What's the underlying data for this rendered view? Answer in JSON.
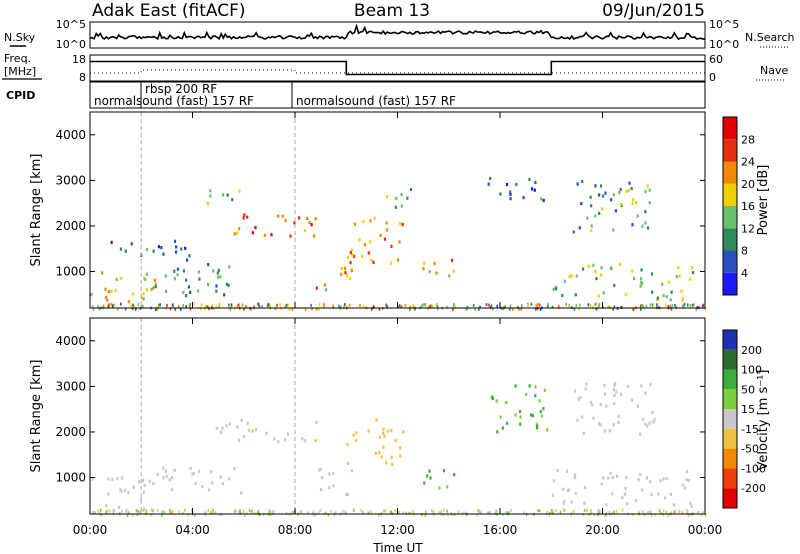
{
  "header": {
    "station": "Adak East (fitACF)",
    "beam": "Beam 13",
    "date": "09/Jun/2015"
  },
  "nsky_panel": {
    "left_label": "N.Sky",
    "right_label": "N.Search",
    "ticks_left": [
      "10^5",
      "10^0"
    ],
    "ticks_right": [
      "10^5",
      "10^0"
    ]
  },
  "freq_panel": {
    "left_label_1": "Freq.",
    "left_label_2": "[MHz]",
    "right_label": "Nave",
    "ticks_left": [
      "18",
      "8"
    ],
    "ticks_right": [
      "60",
      "0"
    ]
  },
  "cpid_panel": {
    "label": "CPID",
    "modes": [
      "normalsound (fast) 157 RF",
      "rbsp 200 RF",
      "normalsound (fast) 157 RF"
    ]
  },
  "x_axis": {
    "label": "Time UT",
    "ticks": [
      "00:00",
      "04:00",
      "08:00",
      "12:00",
      "16:00",
      "20:00",
      "00:00"
    ]
  },
  "y_axis": {
    "label": "Slant Range [km]",
    "ticks": [
      "1000",
      "2000",
      "3000",
      "4000"
    ]
  },
  "power_scale": {
    "label": "Power [dB]",
    "ticks": [
      "4",
      "8",
      "12",
      "16",
      "20",
      "24",
      "28"
    ],
    "colors": [
      "#1a1aff",
      "#2a4dbf",
      "#2e8b57",
      "#6cbf6c",
      "#f2d000",
      "#f08a00",
      "#e52b10",
      "#e00000"
    ]
  },
  "velocity_scale": {
    "label": "Velocity [m s⁻¹]",
    "ticks": [
      "200",
      "100",
      "50",
      "15",
      "-15",
      "-50",
      "-100",
      "-200"
    ],
    "colors": [
      "#1f2fb0",
      "#2a6a2a",
      "#3cae3c",
      "#7ad03c",
      "#c8c8c8",
      "#f0c040",
      "#f08a00",
      "#f04010",
      "#e00000"
    ]
  },
  "chart_data": {
    "type": "heatmap",
    "x_range_hours": [
      0,
      24
    ],
    "y_range_km": [
      200,
      4500
    ],
    "x_ticks_hours": [
      0,
      4,
      8,
      12,
      16,
      20,
      24
    ],
    "y_ticks_km": [
      1000,
      2000,
      3000,
      4000
    ],
    "mode_change_hours": [
      2,
      8
    ],
    "freq_mhz": [
      {
        "from": 0,
        "to": 10,
        "value": 15.5
      },
      {
        "from": 10,
        "to": 18,
        "value": 10.5
      },
      {
        "from": 18,
        "to": 24,
        "value": 15.5
      }
    ],
    "power_echo_regions": [
      {
        "t0": 0.0,
        "t1": 2.5,
        "r0": 300,
        "r1": 1100,
        "dB": 18
      },
      {
        "t0": 0.5,
        "t1": 4.0,
        "r0": 1300,
        "r1": 1700,
        "dB": 8
      },
      {
        "t0": 2.5,
        "t1": 6.0,
        "r0": 500,
        "r1": 1300,
        "dB": 10
      },
      {
        "t0": 4.8,
        "t1": 8.8,
        "r0": 1800,
        "r1": 2300,
        "dB": 24
      },
      {
        "t0": 4.5,
        "t1": 5.8,
        "r0": 2400,
        "r1": 2900,
        "dB": 14
      },
      {
        "t0": 8.8,
        "t1": 10.2,
        "r0": 600,
        "r1": 1300,
        "dB": 20
      },
      {
        "t0": 10.0,
        "t1": 12.2,
        "r0": 1200,
        "r1": 2300,
        "dB": 22
      },
      {
        "t0": 11.5,
        "t1": 12.8,
        "r0": 2400,
        "r1": 2900,
        "dB": 12
      },
      {
        "t0": 12.8,
        "t1": 14.2,
        "r0": 800,
        "r1": 1300,
        "dB": 20
      },
      {
        "t0": 15.5,
        "t1": 17.8,
        "r0": 2500,
        "r1": 3100,
        "dB": 8
      },
      {
        "t0": 18.0,
        "t1": 23.5,
        "r0": 400,
        "r1": 1200,
        "dB": 14
      },
      {
        "t0": 18.8,
        "t1": 22.0,
        "r0": 1900,
        "r1": 3100,
        "dB": 12
      }
    ],
    "velocity_echo_regions": [
      {
        "t0": 0.0,
        "t1": 2.5,
        "r0": 300,
        "r1": 1100,
        "v": 0
      },
      {
        "t0": 4.8,
        "t1": 8.8,
        "r0": 1800,
        "r1": 2300,
        "v": -5
      },
      {
        "t0": 2.5,
        "t1": 6.0,
        "r0": 700,
        "r1": 1300,
        "v": 0
      },
      {
        "t0": 8.8,
        "t1": 10.2,
        "r0": 600,
        "r1": 1300,
        "v": 0
      },
      {
        "t0": 10.0,
        "t1": 12.2,
        "r0": 1300,
        "r1": 2300,
        "v": -30
      },
      {
        "t0": 12.8,
        "t1": 14.2,
        "r0": 800,
        "r1": 1300,
        "v": 40
      },
      {
        "t0": 15.5,
        "t1": 17.8,
        "r0": 2000,
        "r1": 3100,
        "v": 30
      },
      {
        "t0": 18.0,
        "t1": 23.5,
        "r0": 400,
        "r1": 1200,
        "v": 0
      },
      {
        "t0": 18.8,
        "t1": 22.0,
        "r0": 1900,
        "r1": 3100,
        "v": 0
      }
    ]
  }
}
